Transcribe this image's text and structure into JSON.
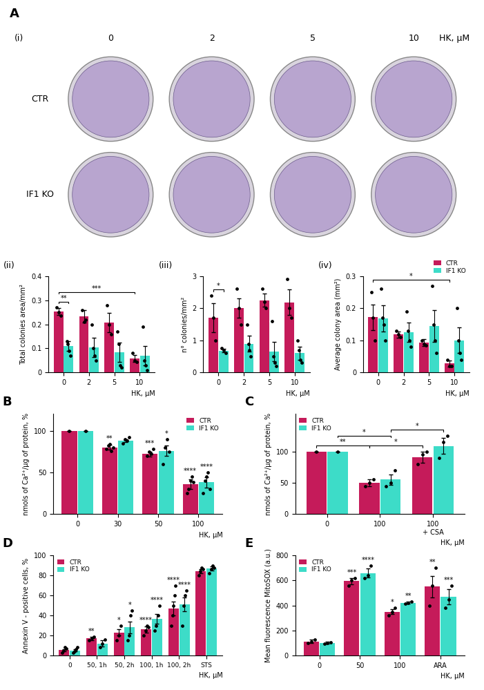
{
  "image_panel": {
    "panel": "A",
    "label": "(i)",
    "columns": [
      "0",
      "2",
      "5",
      "10"
    ],
    "column_unit": "HK, µM",
    "rows": [
      "CTR",
      "IF1 KO"
    ]
  },
  "chart_data": [
    {
      "type": "bar",
      "title": "(ii)",
      "x_label": "HK, µM",
      "y_label": "Total colonies area/mm²",
      "categories": [
        "0",
        "2",
        "5",
        "10"
      ],
      "series": [
        {
          "name": "CTR",
          "color": "#c51b5a",
          "values": [
            0.253,
            0.233,
            0.208,
            0.058
          ],
          "errors": [
            0.015,
            0.025,
            0.04,
            0.015
          ],
          "points": [
            [
              0.27,
              0.25,
              0.235
            ],
            [
              0.26,
              0.21,
              0.22
            ],
            [
              0.28,
              0.2,
              0.16
            ],
            [
              0.08,
              0.05,
              0.045
            ]
          ]
        },
        {
          "name": "IF1 KO",
          "color": "#3ddcc8",
          "values": [
            0.11,
            0.105,
            0.085,
            0.07
          ],
          "errors": [
            0.02,
            0.04,
            0.04,
            0.04
          ],
          "points": [
            [
              0.13,
              0.12,
              0.09,
              0.07
            ],
            [
              0.2,
              0.1,
              0.07,
              0.05
            ],
            [
              0.17,
              0.12,
              0.03,
              0.02
            ],
            [
              0.19,
              0.05,
              0.03,
              0.01
            ]
          ]
        }
      ],
      "ylim": [
        0,
        0.4
      ],
      "yticks": [
        0,
        0.1,
        0.2,
        0.3,
        0.4
      ],
      "annotations": [
        {
          "text": "**",
          "from": [
            0,
            "CTR"
          ],
          "to": [
            0,
            "IF1 KO"
          ]
        },
        {
          "text": "***",
          "from": [
            0,
            "CTR"
          ],
          "to": [
            3,
            "CTR"
          ]
        }
      ]
    },
    {
      "type": "bar",
      "title": "(iii)",
      "x_label": "HK, µM",
      "y_label": "n° colonies/mm²",
      "categories": [
        "0",
        "2",
        "5",
        "10"
      ],
      "series": [
        {
          "name": "CTR",
          "color": "#c51b5a",
          "values": [
            1.7,
            2.0,
            2.25,
            2.18
          ],
          "errors": [
            0.45,
            0.3,
            0.2,
            0.4
          ],
          "points": [
            [
              2.4,
              1.7,
              1.0
            ],
            [
              2.6,
              2.0,
              1.5
            ],
            [
              2.6,
              2.2,
              2.0
            ],
            [
              2.9,
              2.0,
              1.7
            ]
          ]
        },
        {
          "name": "IF1 KO",
          "color": "#3ddcc8",
          "values": [
            0.68,
            0.9,
            0.65,
            0.6
          ],
          "errors": [
            0.05,
            0.25,
            0.3,
            0.2
          ],
          "points": [
            [
              0.75,
              0.7,
              0.6
            ],
            [
              1.5,
              0.9,
              0.7,
              0.5
            ],
            [
              1.6,
              0.5,
              0.3,
              0.2
            ],
            [
              1.0,
              0.7,
              0.4,
              0.3
            ]
          ]
        }
      ],
      "ylim": [
        0,
        3
      ],
      "yticks": [
        0,
        1,
        2,
        3
      ],
      "annotations": [
        {
          "text": "*",
          "from": [
            0,
            "CTR"
          ],
          "to": [
            0,
            "IF1 KO"
          ]
        }
      ]
    },
    {
      "type": "bar",
      "title": "(iv)",
      "x_label": "HK, µM",
      "y_label": "Average colony area (mm²)",
      "categories": [
        "0",
        "2",
        "5",
        "10"
      ],
      "series": [
        {
          "name": "CTR",
          "color": "#c51b5a",
          "values": [
            0.172,
            0.118,
            0.093,
            0.028
          ],
          "errors": [
            0.04,
            0.01,
            0.01,
            0.01
          ],
          "points": [
            [
              0.25,
              0.17,
              0.1
            ],
            [
              0.13,
              0.12,
              0.11
            ],
            [
              0.1,
              0.09,
              0.085
            ],
            [
              0.04,
              0.02,
              0.02
            ]
          ]
        },
        {
          "name": "IF1 KO",
          "color": "#3ddcc8",
          "values": [
            0.168,
            0.125,
            0.145,
            0.1
          ],
          "errors": [
            0.04,
            0.03,
            0.05,
            0.04
          ],
          "points": [
            [
              0.26,
              0.17,
              0.15,
              0.1
            ],
            [
              0.19,
              0.13,
              0.1,
              0.08
            ],
            [
              0.27,
              0.15,
              0.1,
              0.06
            ],
            [
              0.2,
              0.1,
              0.06,
              0.04
            ]
          ]
        }
      ],
      "ylim": [
        0,
        0.3
      ],
      "yticks": [
        0,
        0.1,
        0.2,
        0.3
      ],
      "legend": "upper right",
      "annotations": [
        {
          "text": "*",
          "from": [
            0,
            "CTR"
          ],
          "to": [
            3,
            "CTR"
          ]
        }
      ]
    },
    {
      "type": "bar",
      "title": "B",
      "x_label": "HK, µM",
      "y_label": "nmols of Ca²⁺/µg of protein, %",
      "categories": [
        "0",
        "30",
        "50",
        "100"
      ],
      "series": [
        {
          "name": "CTR",
          "color": "#c51b5a",
          "values": [
            100,
            80,
            72,
            36
          ],
          "errors": [
            0,
            3,
            3,
            6
          ],
          "points": [
            [
              100
            ],
            [
              78,
              82,
              84,
              76,
              80
            ],
            [
              70,
              75,
              72,
              78
            ],
            [
              25,
              30,
              40,
              45,
              38
            ]
          ]
        },
        {
          "name": "IF1 KO",
          "color": "#3ddcc8",
          "values": [
            100,
            88,
            76,
            38
          ],
          "errors": [
            0,
            2,
            6,
            6
          ],
          "points": [
            [
              100
            ],
            [
              85,
              90,
              88,
              92
            ],
            [
              60,
              80,
              90,
              75
            ],
            [
              25,
              40,
              45,
              50,
              30
            ]
          ]
        }
      ],
      "ylim": [
        0,
        120
      ],
      "yticks": [
        0,
        50,
        100
      ],
      "legend": "upper right",
      "annotations": [
        {
          "text": "**",
          "category": 1,
          "series": "CTR"
        },
        {
          "text": "***",
          "category": 2,
          "series": "CTR"
        },
        {
          "text": "****",
          "category": 3,
          "series": "CTR"
        },
        {
          "text": "*",
          "category": 2,
          "series": "IF1 KO"
        },
        {
          "text": "****",
          "category": 3,
          "series": "IF1 KO"
        }
      ]
    },
    {
      "type": "bar",
      "title": "C",
      "x_label": "HK, µM",
      "y_label": "nmols of Ca²⁺/µg of protein, %",
      "categories": [
        "0",
        "100",
        "100\n+ CSA"
      ],
      "series": [
        {
          "name": "CTR",
          "color": "#c51b5a",
          "values": [
            100,
            50,
            91
          ],
          "errors": [
            0,
            5,
            9
          ],
          "points": [
            [
              100
            ],
            [
              45,
              50,
              55
            ],
            [
              80,
              95,
              100
            ]
          ]
        },
        {
          "name": "IF1 KO",
          "color": "#3ddcc8",
          "values": [
            100,
            55,
            109
          ],
          "errors": [
            0,
            8,
            13
          ],
          "points": [
            [
              100
            ],
            [
              45,
              50,
              70
            ],
            [
              90,
              115,
              125
            ]
          ]
        }
      ],
      "ylim": [
        0,
        160
      ],
      "yticks": [
        0,
        50,
        100
      ],
      "legend": "upper left",
      "annotations": [
        {
          "text": "**",
          "from": [
            0,
            "CTR"
          ],
          "to": [
            1,
            "CTR"
          ]
        },
        {
          "text": "*",
          "from": [
            0,
            "IF1 KO"
          ],
          "to": [
            1,
            "IF1 KO"
          ]
        },
        {
          "text": "*",
          "from": [
            1,
            "CTR"
          ],
          "to": [
            2,
            "CTR"
          ]
        },
        {
          "text": "*",
          "from": [
            1,
            "IF1 KO"
          ],
          "to": [
            2,
            "IF1 KO"
          ]
        }
      ]
    },
    {
      "type": "bar",
      "title": "D",
      "x_label": "HK, µM",
      "y_label": "Annexin V - positive cells, %",
      "categories": [
        "0",
        "50, 1h",
        "50, 2h",
        "100, 1h",
        "100, 2h",
        "STS"
      ],
      "series": [
        {
          "name": "CTR",
          "color": "#c51b5a",
          "values": [
            5.5,
            17,
            23,
            26,
            47,
            84
          ],
          "errors": [
            1,
            2,
            3,
            3,
            7,
            2
          ],
          "points": [
            [
              3,
              5,
              8,
              7
            ],
            [
              15,
              17,
              19
            ],
            [
              15,
              20,
              30
            ],
            [
              20,
              25,
              30,
              28
            ],
            [
              30,
              40,
              50,
              60,
              70
            ],
            [
              80,
              84,
              88,
              86
            ]
          ]
        },
        {
          "name": "IF1 KO",
          "color": "#3ddcc8",
          "values": [
            5,
            12,
            28,
            36.5,
            51,
            87
          ],
          "errors": [
            1,
            3,
            6,
            5,
            7,
            2
          ],
          "points": [
            [
              3,
              4,
              6,
              8
            ],
            [
              8,
              12,
              16
            ],
            [
              15,
              20,
              40,
              45
            ],
            [
              25,
              30,
              40,
              50
            ],
            [
              30,
              50,
              60,
              65
            ],
            [
              82,
              86,
              90,
              88
            ]
          ]
        }
      ],
      "ylim": [
        0,
        100
      ],
      "yticks": [
        0,
        20,
        40,
        60,
        80,
        100
      ],
      "legend": "upper left",
      "annotations": [
        {
          "text": "**",
          "category": 1,
          "series": "CTR"
        },
        {
          "text": "*",
          "category": 2,
          "series": "CTR"
        },
        {
          "text": "****",
          "category": 3,
          "series": "CTR"
        },
        {
          "text": "****",
          "category": 4,
          "series": "CTR"
        },
        {
          "text": "*",
          "category": 2,
          "series": "IF1 KO"
        },
        {
          "text": "****",
          "category": 3,
          "series": "IF1 KO"
        },
        {
          "text": "****",
          "category": 4,
          "series": "IF1 KO"
        }
      ]
    },
    {
      "type": "bar",
      "title": "E",
      "x_label": "HK, µM",
      "y_label": "Mean fluorescence MitoSOX (a.u.)",
      "categories": [
        "0",
        "50",
        "100",
        "ARA"
      ],
      "series": [
        {
          "name": "CTR",
          "color": "#c51b5a",
          "values": [
            112,
            595,
            350,
            550
          ],
          "errors": [
            15,
            25,
            20,
            85
          ],
          "points": [
            [
              100,
              110,
              125
            ],
            [
              560,
              600,
              620
            ],
            [
              320,
              350,
              380
            ],
            [
              400,
              560,
              700
            ]
          ]
        },
        {
          "name": "IF1 KO",
          "color": "#3ddcc8",
          "values": [
            100,
            660,
            422,
            470
          ],
          "errors": [
            8,
            35,
            10,
            60
          ],
          "points": [
            [
              95,
              100,
              105
            ],
            [
              620,
              640,
              720
            ],
            [
              415,
              420,
              430
            ],
            [
              380,
              450,
              560
            ]
          ]
        }
      ],
      "ylim": [
        0,
        800
      ],
      "yticks": [
        0,
        200,
        400,
        600,
        800
      ],
      "legend": "upper left",
      "annotations": [
        {
          "text": "***",
          "category": 1,
          "series": "CTR"
        },
        {
          "text": "*",
          "category": 2,
          "series": "CTR"
        },
        {
          "text": "**",
          "category": 3,
          "series": "CTR"
        },
        {
          "text": "****",
          "category": 1,
          "series": "IF1 KO"
        },
        {
          "text": "**",
          "category": 2,
          "series": "IF1 KO"
        },
        {
          "text": "***",
          "category": 3,
          "series": "IF1 KO"
        }
      ]
    }
  ]
}
